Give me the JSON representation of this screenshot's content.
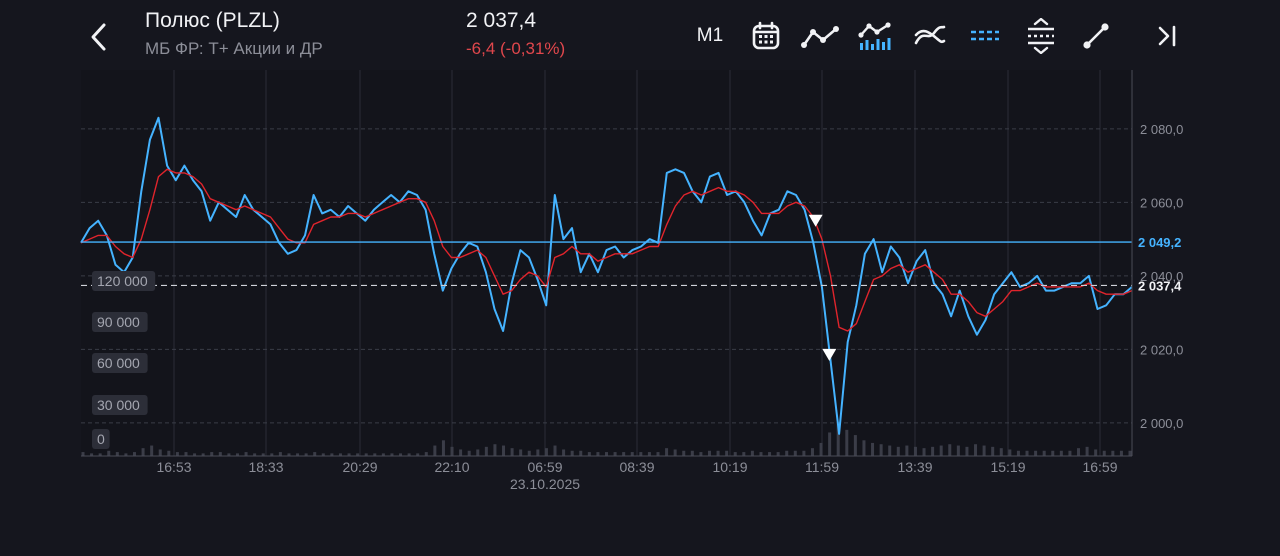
{
  "header": {
    "title": "Полюс (PLZL)",
    "subtitle": "МБ ФР: Т+ Акции и ДР",
    "price": "2 037,4",
    "change": "-6,4 (-0,31%)",
    "change_color": "#e0474c"
  },
  "toolbar": {
    "timeframe": "M1",
    "icons": [
      "calendar-icon",
      "line-chart-icon",
      "volume-bars-icon",
      "indicators-icon",
      "price-lines-icon",
      "levels-icon",
      "draw-line-icon",
      "jump-to-end-icon"
    ],
    "active_color": "#45b3ff"
  },
  "chart_data": {
    "type": "line",
    "y_axis": {
      "ticks": [
        2000,
        2020,
        2040,
        2060,
        2080
      ],
      "tick_labels": [
        "2 000,0",
        "2 020,0",
        "2 040,0",
        "2 060,0",
        "2 080,0"
      ],
      "range": [
        1991,
        2096
      ]
    },
    "x_axis": {
      "tick_labels": [
        "16:53",
        "18:33",
        "20:29",
        "22:10",
        "06:59",
        "08:39",
        "10:19",
        "11:59",
        "13:39",
        "15:19",
        "16:59"
      ],
      "date_label": "23.10.2025"
    },
    "volume_axis": {
      "tick_labels": [
        "120 000",
        "90 000",
        "60 000",
        "30 000",
        "0"
      ]
    },
    "reference_lines": [
      {
        "label": "2 049,2",
        "value": 2049.2,
        "style": "solid",
        "color": "#45b3ff"
      },
      {
        "label": "2 037,4",
        "value": 2037.4,
        "style": "dashed",
        "color": "#cfd1d8"
      }
    ],
    "markers": [
      {
        "value": 2055,
        "x_fraction": 0.699
      },
      {
        "value": 2018.5,
        "x_fraction": 0.712
      }
    ],
    "series": [
      {
        "color": "#45b3ff",
        "values": [
          2049,
          2053,
          2055,
          2051,
          2043,
          2041,
          2045,
          2063,
          2077,
          2083,
          2070,
          2066,
          2070,
          2066,
          2063,
          2055,
          2060,
          2058,
          2056,
          2062,
          2058,
          2056,
          2054,
          2049,
          2046,
          2047,
          2051,
          2062,
          2057,
          2058,
          2056,
          2059,
          2057,
          2055,
          2058,
          2060,
          2062,
          2060,
          2063,
          2062,
          2058,
          2046,
          2036,
          2042,
          2046,
          2049,
          2048,
          2041,
          2031,
          2025,
          2038,
          2047,
          2045,
          2039,
          2032,
          2062,
          2050,
          2053,
          2041,
          2046,
          2041,
          2047,
          2048,
          2045,
          2047,
          2048,
          2050,
          2049,
          2068,
          2069,
          2068,
          2063,
          2060,
          2067,
          2068,
          2062,
          2063,
          2060,
          2055,
          2051,
          2057,
          2058,
          2063,
          2062,
          2058,
          2049,
          2037,
          2017,
          1997,
          2022,
          2032,
          2046,
          2050,
          2041,
          2048,
          2045,
          2038,
          2044,
          2047,
          2038,
          2035,
          2029,
          2036,
          2029,
          2024,
          2028,
          2035,
          2038,
          2041,
          2037,
          2038,
          2040,
          2036,
          2036,
          2037,
          2038,
          2038,
          2040,
          2031,
          2032,
          2035,
          2035,
          2037
        ]
      },
      {
        "color": "#e0242c",
        "values": [
          2049,
          2050,
          2051,
          2051,
          2048,
          2046,
          2045,
          2050,
          2058,
          2067,
          2069,
          2068,
          2068,
          2067,
          2065,
          2061,
          2060,
          2059,
          2058,
          2059,
          2058,
          2057,
          2056,
          2053,
          2050,
          2049,
          2049,
          2054,
          2055,
          2056,
          2056,
          2057,
          2057,
          2056,
          2057,
          2058,
          2059,
          2060,
          2061,
          2061,
          2060,
          2055,
          2048,
          2045,
          2045,
          2046,
          2047,
          2045,
          2040,
          2035,
          2036,
          2039,
          2041,
          2040,
          2037,
          2045,
          2046,
          2048,
          2046,
          2046,
          2044,
          2045,
          2046,
          2046,
          2046,
          2047,
          2048,
          2048,
          2054,
          2059,
          2062,
          2063,
          2062,
          2063,
          2064,
          2063,
          2063,
          2062,
          2060,
          2057,
          2057,
          2057,
          2059,
          2060,
          2059,
          2056,
          2050,
          2040,
          2026,
          2025,
          2027,
          2033,
          2039,
          2040,
          2042,
          2043,
          2041,
          2042,
          2043,
          2041,
          2039,
          2035,
          2035,
          2033,
          2030,
          2029,
          2031,
          2033,
          2036,
          2036,
          2037,
          2038,
          2037,
          2037,
          2037,
          2037,
          2037,
          2038,
          2036,
          2035,
          2035,
          2035,
          2036
        ]
      }
    ],
    "volume": [
      3,
      2,
      2,
      4,
      3,
      2,
      3,
      6,
      8,
      5,
      4,
      3,
      3,
      2,
      2,
      3,
      3,
      2,
      2,
      3,
      2,
      2,
      2,
      3,
      2,
      2,
      2,
      3,
      2,
      2,
      2,
      2,
      2,
      2,
      2,
      2,
      2,
      2,
      2,
      2,
      3,
      8,
      12,
      7,
      5,
      4,
      5,
      7,
      9,
      8,
      6,
      5,
      4,
      5,
      6,
      8,
      5,
      4,
      4,
      3,
      3,
      3,
      3,
      3,
      3,
      3,
      3,
      3,
      6,
      5,
      4,
      4,
      3,
      4,
      4,
      4,
      3,
      3,
      4,
      3,
      3,
      3,
      4,
      4,
      4,
      6,
      10,
      18,
      26,
      20,
      16,
      12,
      10,
      9,
      8,
      7,
      8,
      7,
      6,
      7,
      8,
      9,
      8,
      7,
      9,
      8,
      7,
      6,
      5,
      4,
      4,
      4,
      4,
      4,
      4,
      4,
      6,
      7,
      5,
      4,
      4,
      4,
      4
    ]
  }
}
